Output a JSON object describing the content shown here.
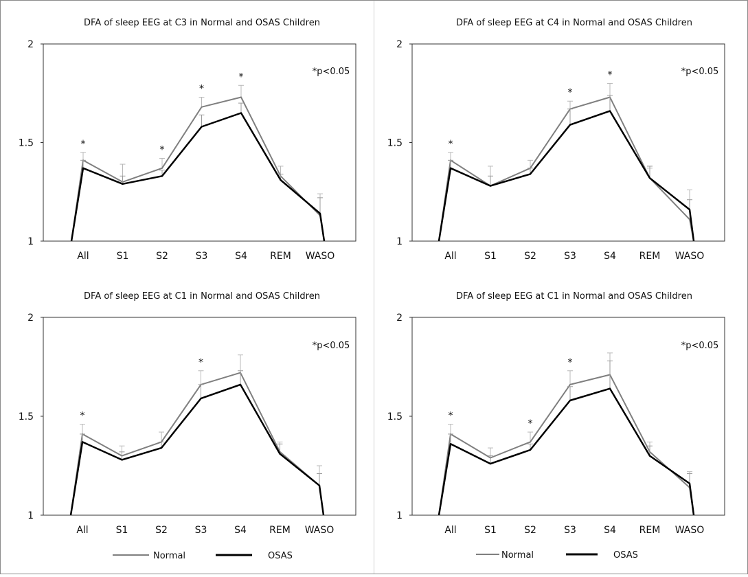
{
  "chart_data": [
    {
      "type": "line",
      "title": "DFA of sleep EEG at C3 in Normal and OSAS Children",
      "categories": [
        "All",
        "S1",
        "S2",
        "S3",
        "S4",
        "REM",
        "WASO"
      ],
      "ylim": [
        1,
        2
      ],
      "yticks": [
        "1",
        "1.5",
        "2"
      ],
      "annotation": "*p<0.05",
      "significant": [
        "All",
        "S2",
        "S3",
        "S4"
      ],
      "grid": false,
      "series": [
        {
          "name": "Normal",
          "color": "#7f7f7f",
          "values": [
            1.41,
            1.3,
            1.37,
            1.68,
            1.73,
            1.33,
            1.13
          ],
          "error": [
            0.04,
            0.09,
            0.05,
            0.05,
            0.06,
            0.05,
            0.11
          ]
        },
        {
          "name": "OSAS",
          "color": "#000000",
          "values": [
            1.37,
            1.29,
            1.33,
            1.58,
            1.65,
            1.31,
            1.14
          ],
          "error": [
            0.04,
            0.04,
            0.03,
            0.06,
            0.05,
            0.03,
            0.08
          ]
        }
      ]
    },
    {
      "type": "line",
      "title": "DFA of sleep EEG at C4 in Normal and OSAS Children",
      "categories": [
        "All",
        "S1",
        "S2",
        "S3",
        "S4",
        "REM",
        "WASO"
      ],
      "ylim": [
        1,
        2
      ],
      "yticks": [
        "1",
        "1.5",
        "2"
      ],
      "annotation": "*p<0.05",
      "significant": [
        "All",
        "S3",
        "S4"
      ],
      "grid": false,
      "series": [
        {
          "name": "Normal",
          "color": "#7f7f7f",
          "values": [
            1.41,
            1.28,
            1.37,
            1.67,
            1.73,
            1.32,
            1.11
          ],
          "error": [
            0.04,
            0.1,
            0.04,
            0.04,
            0.07,
            0.05,
            0.15
          ]
        },
        {
          "name": "OSAS",
          "color": "#000000",
          "values": [
            1.37,
            1.28,
            1.34,
            1.59,
            1.66,
            1.32,
            1.16
          ],
          "error": [
            0.04,
            0.05,
            0.03,
            0.08,
            0.08,
            0.06,
            0.05
          ]
        }
      ]
    },
    {
      "type": "line",
      "title": "DFA of sleep EEG at C1 in Normal and OSAS Children",
      "categories": [
        "All",
        "S1",
        "S2",
        "S3",
        "S4",
        "REM",
        "WASO"
      ],
      "ylim": [
        1,
        2
      ],
      "yticks": [
        "1",
        "1.5",
        "2"
      ],
      "annotation": "*p<0.05",
      "significant": [
        "All",
        "S3"
      ],
      "grid": false,
      "series": [
        {
          "name": "Normal",
          "color": "#7f7f7f",
          "values": [
            1.41,
            1.3,
            1.37,
            1.66,
            1.72,
            1.32,
            1.15
          ],
          "error": [
            0.05,
            0.05,
            0.05,
            0.07,
            0.09,
            0.05,
            0.1
          ]
        },
        {
          "name": "OSAS",
          "color": "#000000",
          "values": [
            1.37,
            1.28,
            1.34,
            1.59,
            1.66,
            1.31,
            1.15
          ],
          "error": [
            0.04,
            0.04,
            0.03,
            0.07,
            0.07,
            0.05,
            0.06
          ]
        }
      ]
    },
    {
      "type": "line",
      "title": "DFA of sleep EEG at C1 in Normal and OSAS Children",
      "categories": [
        "All",
        "S1",
        "S2",
        "S3",
        "S4",
        "REM",
        "WASO"
      ],
      "ylim": [
        1,
        2
      ],
      "yticks": [
        "1",
        "1.5",
        "2"
      ],
      "annotation": "*p<0.05",
      "significant": [
        "All",
        "S2",
        "S3"
      ],
      "grid": false,
      "series": [
        {
          "name": "Normal",
          "color": "#7f7f7f",
          "values": [
            1.41,
            1.29,
            1.37,
            1.66,
            1.71,
            1.32,
            1.14
          ],
          "error": [
            0.05,
            0.05,
            0.05,
            0.07,
            0.11,
            0.05,
            0.08
          ]
        },
        {
          "name": "OSAS",
          "color": "#000000",
          "values": [
            1.36,
            1.26,
            1.33,
            1.58,
            1.64,
            1.3,
            1.16
          ],
          "error": [
            0.05,
            0.04,
            0.03,
            0.07,
            0.14,
            0.05,
            0.05
          ]
        }
      ]
    }
  ],
  "legends": [
    {
      "items": [
        {
          "label": "Normal",
          "color": "#7f7f7f"
        },
        {
          "label": "OSAS",
          "color": "#000000"
        }
      ]
    },
    {
      "items": [
        {
          "label": "Normal",
          "color": "#7f7f7f"
        },
        {
          "label": "OSAS",
          "color": "#000000"
        }
      ]
    }
  ]
}
